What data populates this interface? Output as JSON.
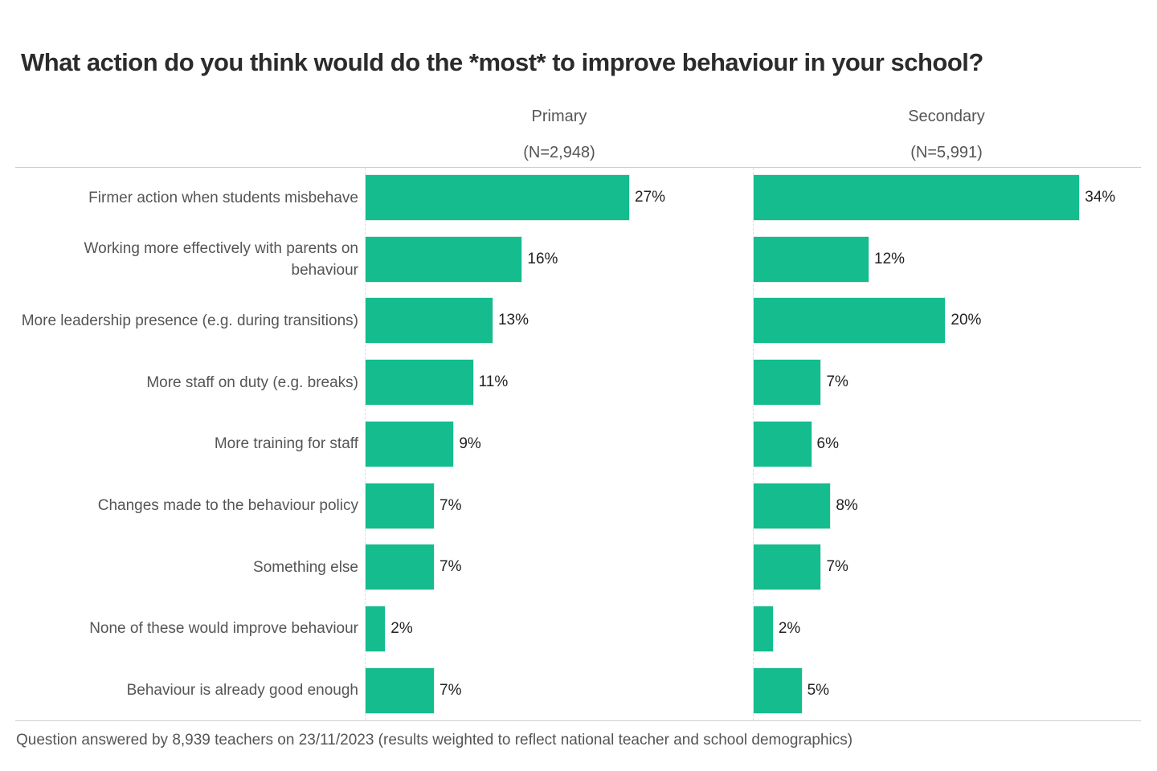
{
  "chart_data": {
    "type": "bar",
    "orientation": "horizontal",
    "title": "What action do you think would do the *most* to improve behaviour in your school?",
    "categories": [
      "Firmer action when students misbehave",
      "Working more effectively with parents on behaviour",
      "More leadership presence (e.g. during transitions)",
      "More staff on duty (e.g. breaks)",
      "More training for staff",
      "Changes made to the behaviour policy",
      "Something else",
      "None of these would improve behaviour",
      "Behaviour is already good enough"
    ],
    "series": [
      {
        "name": "Primary",
        "n_label": "(N=2,948)",
        "values": [
          27,
          16,
          13,
          11,
          9,
          7,
          7,
          2,
          7
        ]
      },
      {
        "name": "Secondary",
        "n_label": "(N=5,991)",
        "values": [
          34,
          12,
          20,
          7,
          6,
          8,
          7,
          2,
          5
        ]
      }
    ],
    "value_suffix": "%",
    "xlabel": "",
    "ylabel": "",
    "grid": false,
    "legend": "none",
    "bar_color": "#14bc8e",
    "footnote": "Question answered by 8,939 teachers on 23/11/2023 (results weighted to reflect national teacher and school demographics)"
  }
}
